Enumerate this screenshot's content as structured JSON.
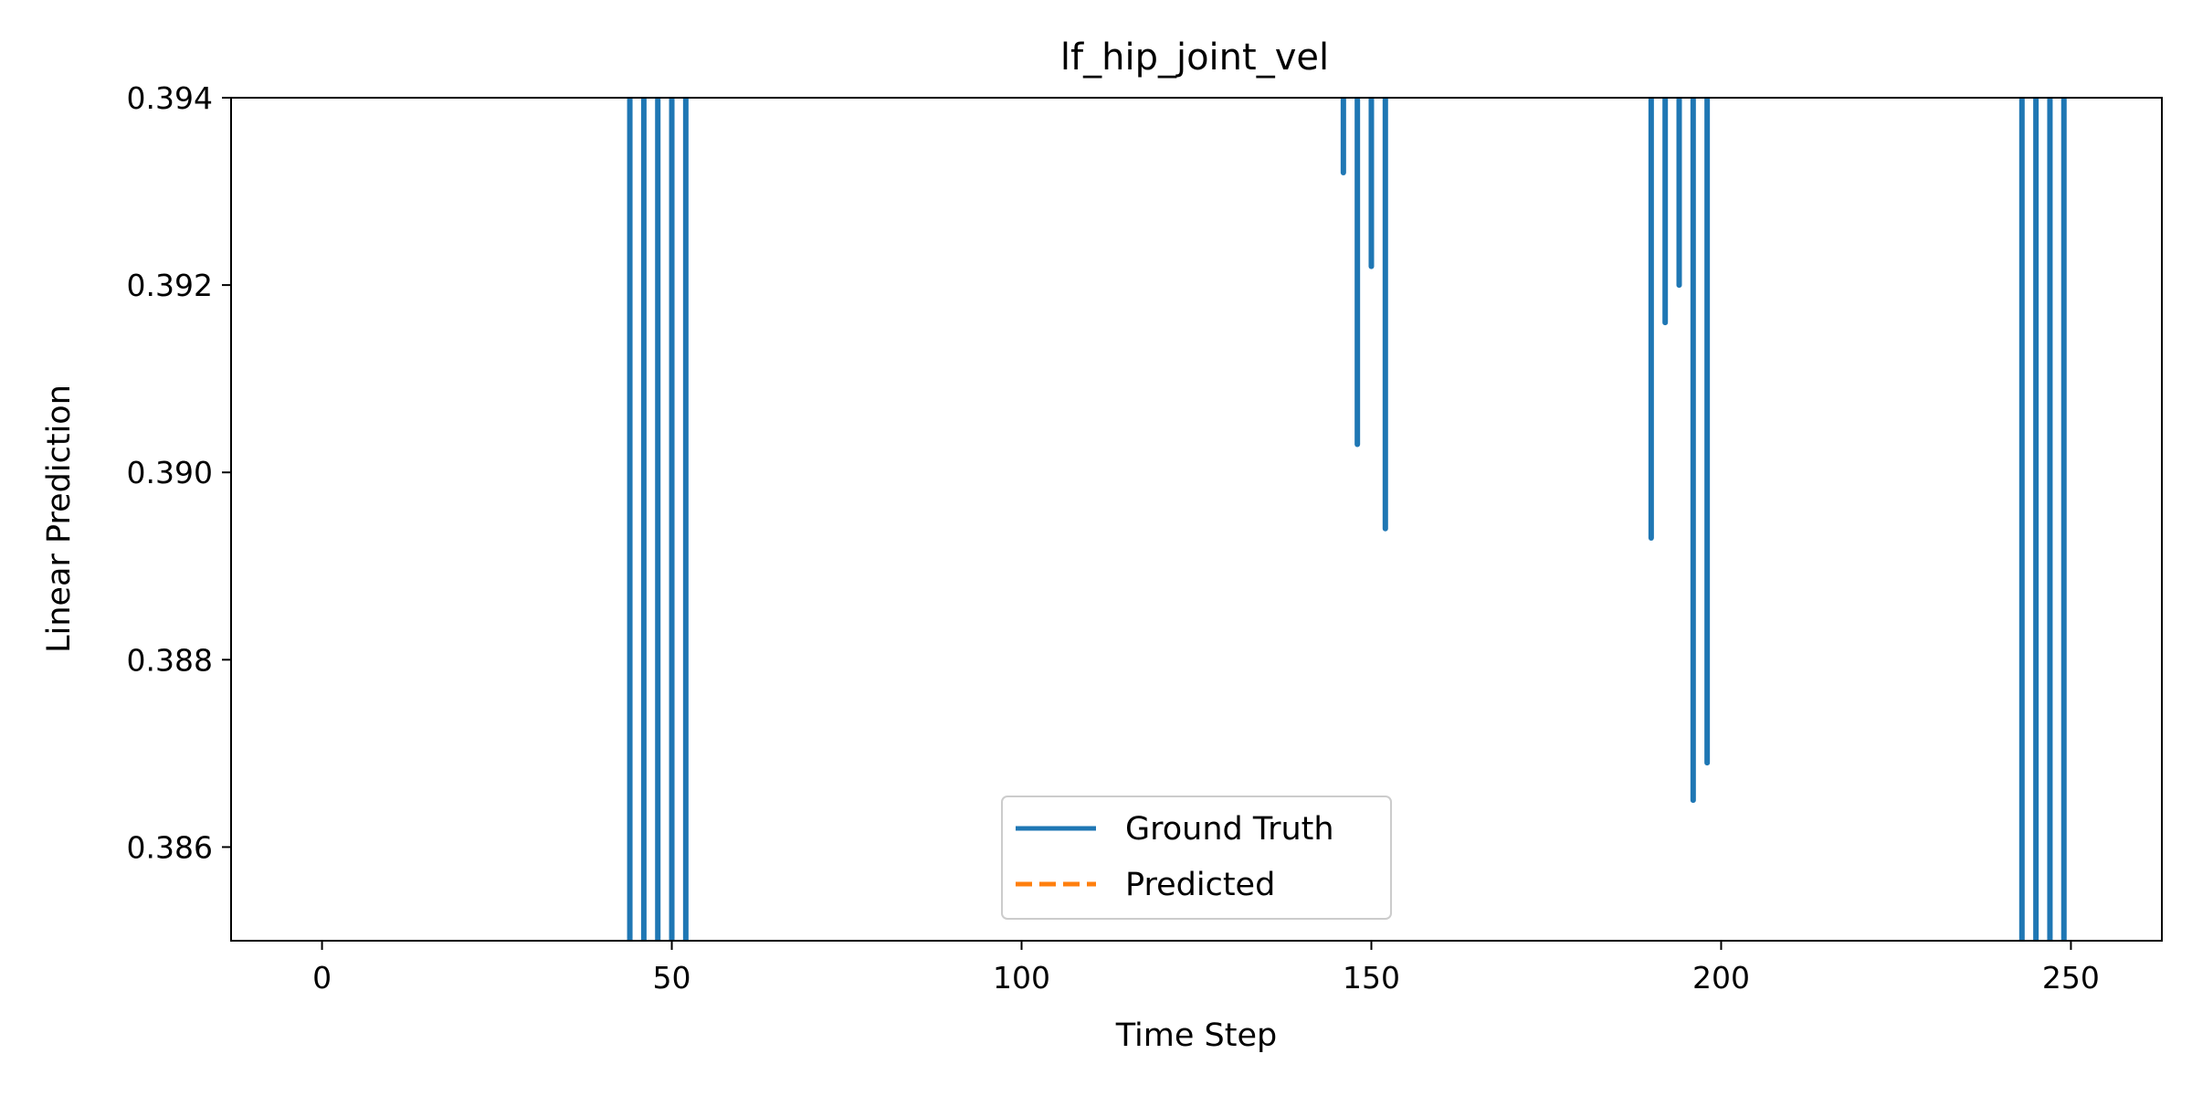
{
  "chart_data": {
    "type": "line",
    "title": "lf_hip_joint_vel",
    "xlabel": "Time Step",
    "ylabel": "Linear Prediction",
    "xlim": [
      -13,
      263
    ],
    "ylim": [
      0.385,
      0.394
    ],
    "xticks": [
      0,
      50,
      100,
      150,
      200,
      250
    ],
    "xtick_labels": [
      "0",
      "50",
      "100",
      "150",
      "200",
      "250"
    ],
    "yticks": [
      0.386,
      0.388,
      0.39,
      0.392,
      0.394
    ],
    "ytick_labels": [
      "0.386",
      "0.388",
      "0.390",
      "0.392",
      "0.394"
    ],
    "grid": false,
    "legend_position": "lower center",
    "colors": {
      "ground_truth": "#1f77b4",
      "predicted": "#ff7f0e"
    },
    "series": [
      {
        "name": "Ground Truth",
        "style": "solid",
        "color": "#1f77b4",
        "segments_in_view": [
          {
            "x": 44,
            "y_low": 0.385,
            "y_high": 0.394
          },
          {
            "x": 46,
            "y_low": 0.385,
            "y_high": 0.394
          },
          {
            "x": 48,
            "y_low": 0.385,
            "y_high": 0.394
          },
          {
            "x": 50,
            "y_low": 0.385,
            "y_high": 0.394
          },
          {
            "x": 52,
            "y_low": 0.385,
            "y_high": 0.394
          },
          {
            "x": 146,
            "y_low": 0.3932,
            "y_high": 0.394
          },
          {
            "x": 148,
            "y_low": 0.3903,
            "y_high": 0.394
          },
          {
            "x": 150,
            "y_low": 0.3922,
            "y_high": 0.394
          },
          {
            "x": 152,
            "y_low": 0.3894,
            "y_high": 0.394
          },
          {
            "x": 190,
            "y_low": 0.3893,
            "y_high": 0.394
          },
          {
            "x": 192,
            "y_low": 0.3916,
            "y_high": 0.394
          },
          {
            "x": 194,
            "y_low": 0.392,
            "y_high": 0.394
          },
          {
            "x": 196,
            "y_low": 0.3865,
            "y_high": 0.394
          },
          {
            "x": 198,
            "y_low": 0.3869,
            "y_high": 0.394
          },
          {
            "x": 243,
            "y_low": 0.385,
            "y_high": 0.394
          },
          {
            "x": 245,
            "y_low": 0.385,
            "y_high": 0.394
          },
          {
            "x": 247,
            "y_low": 0.385,
            "y_high": 0.394
          },
          {
            "x": 249,
            "y_low": 0.385,
            "y_high": 0.394
          }
        ]
      },
      {
        "name": "Predicted",
        "style": "dashed",
        "color": "#ff7f0e",
        "segments_in_view": []
      }
    ]
  }
}
